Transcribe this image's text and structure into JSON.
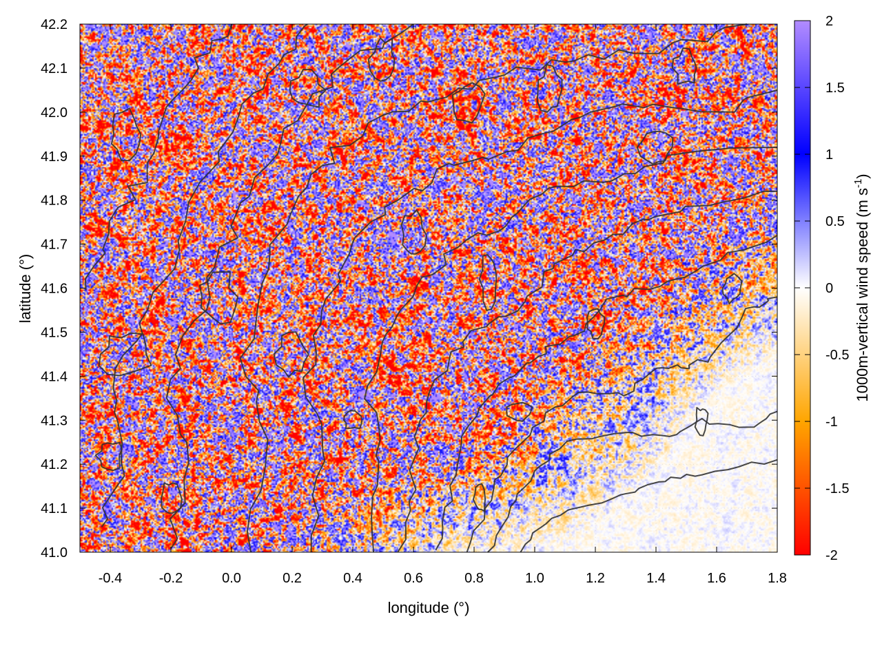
{
  "chart_data": {
    "type": "heatmap",
    "title": "",
    "xlabel": "longitude (°)",
    "ylabel": "latitude (°)",
    "xlim": [
      -0.5,
      1.8
    ],
    "ylim": [
      41.0,
      42.2
    ],
    "x_ticks": [
      "-0.4",
      "-0.2",
      "0.0",
      "0.2",
      "0.4",
      "0.6",
      "0.8",
      "1.0",
      "1.2",
      "1.4",
      "1.6",
      "1.8"
    ],
    "x_tick_values": [
      -0.4,
      -0.2,
      0.0,
      0.2,
      0.4,
      0.6,
      0.8,
      1.0,
      1.2,
      1.4,
      1.6,
      1.8
    ],
    "y_ticks": [
      "41.0",
      "41.1",
      "41.2",
      "41.3",
      "41.4",
      "41.5",
      "41.6",
      "41.7",
      "41.8",
      "41.9",
      "42.0",
      "42.1",
      "42.2"
    ],
    "y_tick_values": [
      41.0,
      41.1,
      41.2,
      41.3,
      41.4,
      41.5,
      41.6,
      41.7,
      41.8,
      41.9,
      42.0,
      42.1,
      42.2
    ],
    "grid": true,
    "colorbar": {
      "label": "1000m-vertical wind speed (m s",
      "label_sup": "-1",
      "label_tail": ")",
      "range": [
        -2,
        2
      ],
      "ticks": [
        "2",
        "1.5",
        "1",
        "0.5",
        "0",
        "-0.5",
        "-1",
        "-1.5",
        "-2"
      ],
      "tick_values": [
        2,
        1.5,
        1,
        0.5,
        0,
        -0.5,
        -1,
        -1.5,
        -2
      ],
      "colors": [
        {
          "value": -2,
          "color": "#ff0000"
        },
        {
          "value": -1,
          "color": "#ffa500"
        },
        {
          "value": 0,
          "color": "#ffffff"
        },
        {
          "value": 1,
          "color": "#0000ff"
        },
        {
          "value": 2,
          "color": "#b28cff"
        }
      ]
    },
    "overlay": "terrain elevation contours (dark grey lines)",
    "contour_color": "#333333",
    "description_of_field": "noisy vertical wind field; strongly perturbed (orange/red and blue) over the northern and western hilly terrain, weak near-zero values over the smoother south-eastern lowlands"
  }
}
